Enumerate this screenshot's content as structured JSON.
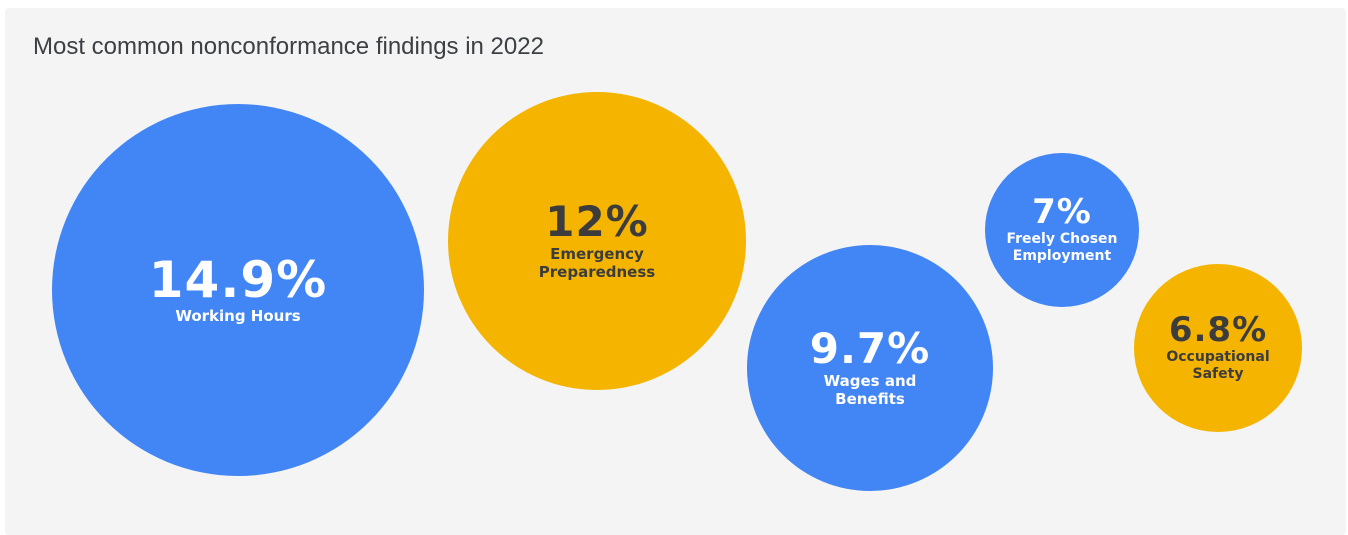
{
  "chart_data": {
    "type": "bubble",
    "title": "Most common nonconformance findings in 2022",
    "unit": "%",
    "series": [
      {
        "category": "Working Hours",
        "value": 14.9,
        "value_label": "14.9%",
        "label_lines": [
          "Working Hours"
        ],
        "color": "#4285f4",
        "text_color": "#ffffff"
      },
      {
        "category": "Emergency Preparedness",
        "value": 12,
        "value_label": "12%",
        "label_lines": [
          "Emergency",
          "Preparedness"
        ],
        "color": "#f4b400",
        "text_color": "#3c3c3c"
      },
      {
        "category": "Wages and Benefits",
        "value": 9.7,
        "value_label": "9.7%",
        "label_lines": [
          "Wages and",
          "Benefits"
        ],
        "color": "#4285f4",
        "text_color": "#ffffff"
      },
      {
        "category": "Freely Chosen Employment",
        "value": 7,
        "value_label": "7%",
        "label_lines": [
          "Freely Chosen",
          "Employment"
        ],
        "color": "#4285f4",
        "text_color": "#ffffff"
      },
      {
        "category": "Occupational Safety",
        "value": 6.8,
        "value_label": "6.8%",
        "label_lines": [
          "Occupational",
          "Safety"
        ],
        "color": "#f4b400",
        "text_color": "#3c3c3c"
      }
    ]
  }
}
